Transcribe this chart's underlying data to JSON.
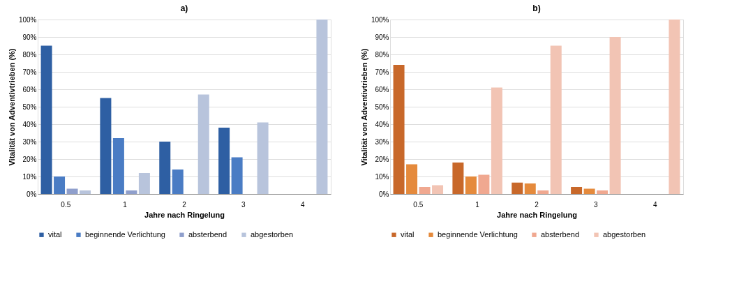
{
  "chart_data": [
    {
      "type": "bar",
      "title": "a)",
      "xlabel": "Jahre nach Ringelung",
      "ylabel": "Vitalität von Adventivtrieben (%)",
      "categories": [
        "0.5",
        "1",
        "2",
        "3",
        "4"
      ],
      "series": [
        {
          "name": "vital",
          "color": "#2e5fa3",
          "values": [
            85,
            55,
            30,
            38,
            0
          ]
        },
        {
          "name": "beginnende Verlichtung",
          "color": "#4a7cc4",
          "values": [
            10,
            32,
            14,
            21,
            0
          ]
        },
        {
          "name": "absterbend",
          "color": "#8f9fcc",
          "values": [
            3,
            2,
            0,
            0,
            0
          ]
        },
        {
          "name": "abgestorben",
          "color": "#b8c4dc",
          "values": [
            2,
            12,
            57,
            41,
            100
          ]
        }
      ],
      "ylim": [
        0,
        100
      ],
      "yticks": [
        {
          "value": 0,
          "label": "0%"
        },
        {
          "value": 10,
          "label": "10%"
        },
        {
          "value": 20,
          "label": "20%"
        },
        {
          "value": 30,
          "label": "30%"
        },
        {
          "value": 40,
          "label": "40%"
        },
        {
          "value": 50,
          "label": "50%"
        },
        {
          "value": 60,
          "label": "60%"
        },
        {
          "value": 70,
          "label": "70%"
        },
        {
          "value": 80,
          "label": "80%"
        },
        {
          "value": 90,
          "label": "90%"
        },
        {
          "value": 100,
          "label": "100%"
        }
      ],
      "grid": "y",
      "legend": "bottom"
    },
    {
      "type": "bar",
      "title": "b)",
      "xlabel": "Jahre nach Ringelung",
      "ylabel": "Vitalität von Adventivtrieben (%)",
      "categories": [
        "0.5",
        "1",
        "2",
        "3",
        "4"
      ],
      "series": [
        {
          "name": "vital",
          "color": "#c8682a",
          "values": [
            74,
            18,
            6.5,
            4,
            0
          ]
        },
        {
          "name": "beginnende Verlichtung",
          "color": "#e58a3c",
          "values": [
            17,
            10,
            6,
            3,
            0
          ]
        },
        {
          "name": "absterbend",
          "color": "#f0a890",
          "values": [
            4,
            11,
            2,
            2,
            0
          ]
        },
        {
          "name": "abgestorben",
          "color": "#f2c4b4",
          "values": [
            5,
            61,
            85,
            90,
            100
          ]
        }
      ],
      "ylim": [
        0,
        100
      ],
      "yticks": [
        {
          "value": 0,
          "label": "0%"
        },
        {
          "value": 10,
          "label": "10%"
        },
        {
          "value": 20,
          "label": "20%"
        },
        {
          "value": 30,
          "label": "30%"
        },
        {
          "value": 40,
          "label": "40%"
        },
        {
          "value": 50,
          "label": "50%"
        },
        {
          "value": 60,
          "label": "60%"
        },
        {
          "value": 70,
          "label": "70%"
        },
        {
          "value": 80,
          "label": "80%"
        },
        {
          "value": 90,
          "label": "90%"
        },
        {
          "value": 100,
          "label": "100%"
        }
      ],
      "grid": "y",
      "legend": "bottom"
    }
  ]
}
